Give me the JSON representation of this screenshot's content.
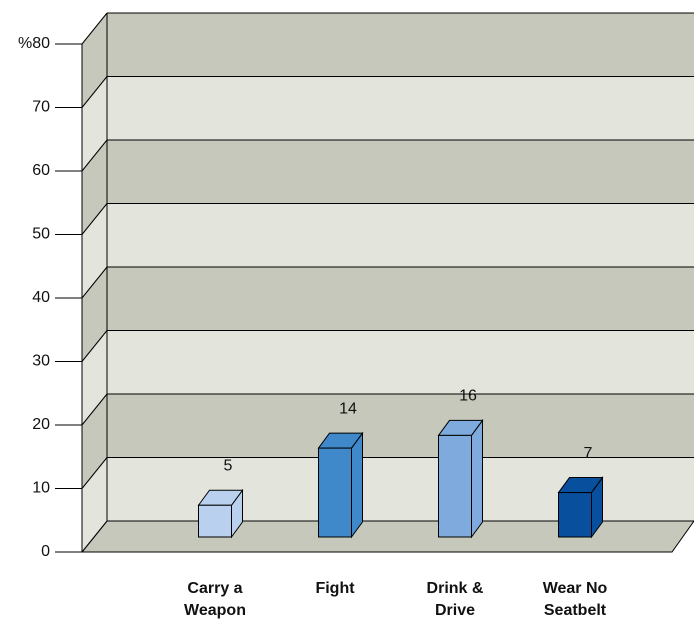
{
  "chart_data": {
    "type": "bar3d",
    "categories": [
      "Carry a Weapon",
      "Fight",
      "Drink & Drive",
      "Wear No Seatbelt"
    ],
    "values": [
      5,
      14,
      16,
      7
    ],
    "colors": [
      "#b9d1ef",
      "#3f88ca",
      "#7eaadd",
      "#084f9d"
    ],
    "ylim": [
      0,
      80
    ],
    "yticks": [
      0,
      10,
      20,
      30,
      40,
      50,
      60,
      70,
      {
        "value": 80,
        "label": "%80"
      }
    ],
    "grid": true
  }
}
